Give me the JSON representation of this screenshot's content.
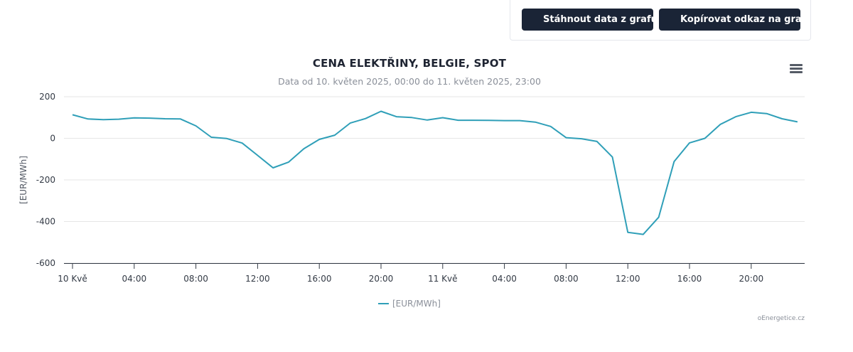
{
  "toolbar": {
    "download_label": "Stáhnout data z grafu",
    "copy_link_label": "Kopírovat odkaz na graf"
  },
  "menu_icon": "hamburger-menu-icon",
  "source_credit": "oEnergetice.cz",
  "colors": {
    "series": "#2f9fb8",
    "button_bg": "#1a2436"
  },
  "chart_data": {
    "type": "line",
    "title": "CENA ELEKTŘINY, BELGIE, SPOT",
    "subtitle": "Data od 10. květen 2025, 00:00 do 11. květen 2025, 23:00",
    "ylabel": "[EUR/MWh]",
    "xlabel": "",
    "ylim": [
      -600,
      200
    ],
    "yticks": [
      200,
      0,
      -200,
      -400,
      -600
    ],
    "grid": true,
    "legend": "bottom-center",
    "x": [
      "10 Kvě 00:00",
      "01:00",
      "02:00",
      "03:00",
      "04:00",
      "05:00",
      "06:00",
      "07:00",
      "08:00",
      "09:00",
      "10:00",
      "11:00",
      "12:00",
      "13:00",
      "14:00",
      "15:00",
      "16:00",
      "17:00",
      "18:00",
      "19:00",
      "20:00",
      "21:00",
      "22:00",
      "23:00",
      "11 Kvě 00:00",
      "01:00",
      "02:00",
      "03:00",
      "04:00",
      "05:00",
      "06:00",
      "07:00",
      "08:00",
      "09:00",
      "10:00",
      "11:00",
      "12:00",
      "13:00",
      "14:00",
      "15:00",
      "16:00",
      "17:00",
      "18:00",
      "19:00",
      "20:00",
      "21:00",
      "22:00",
      "23:00"
    ],
    "xtick_labels": [
      "10 Kvě",
      "04:00",
      "08:00",
      "12:00",
      "16:00",
      "20:00",
      "11 Kvě",
      "04:00",
      "08:00",
      "12:00",
      "16:00",
      "20:00"
    ],
    "series": [
      {
        "name": "[EUR/MWh]",
        "values": [
          113,
          93,
          90,
          92,
          98,
          97,
          94,
          93,
          60,
          5,
          -1,
          -23,
          -82,
          -142,
          -115,
          -50,
          -5,
          15,
          73,
          95,
          130,
          104,
          100,
          88,
          99,
          87,
          87,
          86,
          85,
          85,
          78,
          57,
          3,
          -2,
          -15,
          -90,
          -452,
          -462,
          -380,
          -112,
          -22,
          0,
          67,
          104,
          125,
          119,
          94,
          79
        ]
      }
    ]
  }
}
